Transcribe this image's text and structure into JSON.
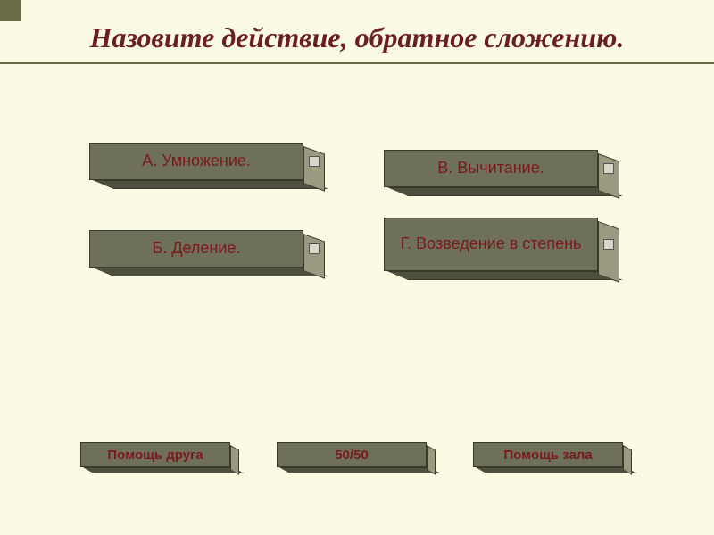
{
  "colors": {
    "background": "#fbfbe3",
    "button_face": "#6f705a",
    "button_side": "#9a9a80",
    "button_bottom": "#4e4f3e",
    "button_border": "#3a3a2a",
    "text_answer": "#7a1a1a",
    "text_title": "#6b1f1f",
    "hr": "#6b6b47",
    "accent_square": "#6b6b47"
  },
  "title": "Назовите действие, обратное сложению.",
  "answers": {
    "a": "А. Умножение.",
    "b": "Б. Деление.",
    "v": "В. Вычитание.",
    "g": "Г. Возведение в степень"
  },
  "helpers": {
    "friend": "Помощь друга",
    "fifty": "50/50",
    "audience": "Помощь зала"
  }
}
